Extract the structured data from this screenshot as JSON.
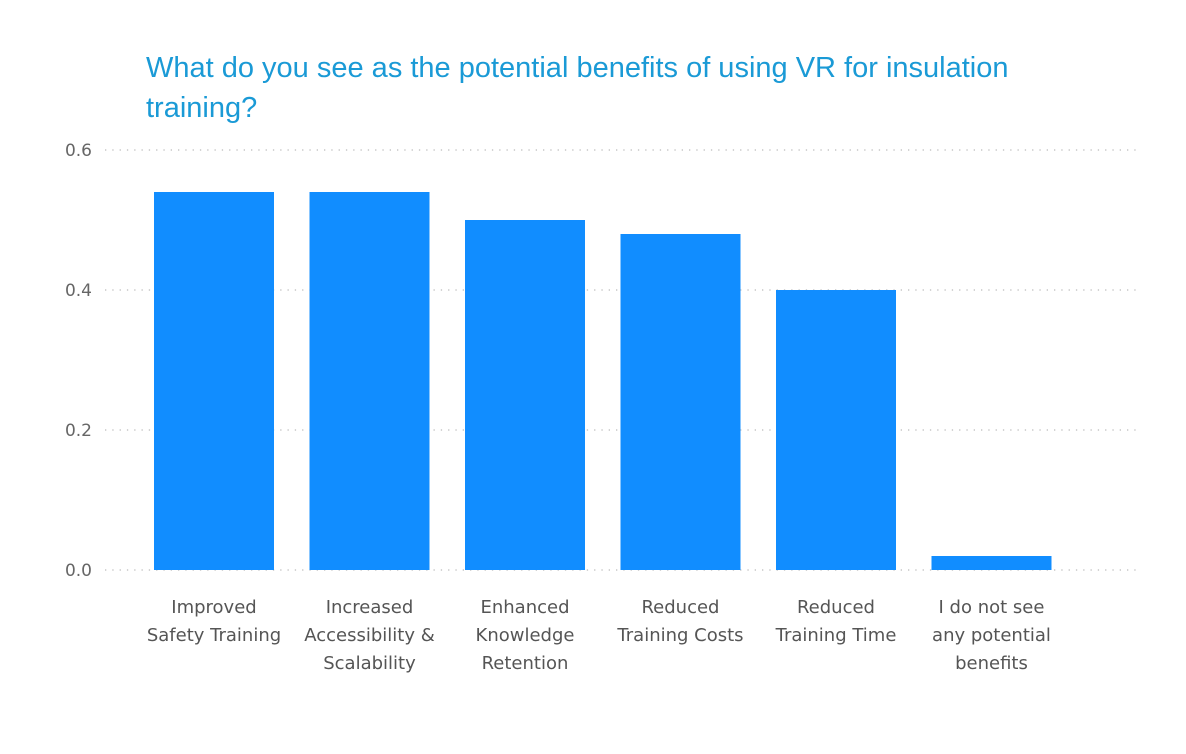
{
  "chart_data": {
    "type": "bar",
    "title": "What do you see as the potential benefits of using VR for insulation training?",
    "categories": [
      [
        "Improved",
        "Safety Training"
      ],
      [
        "Increased",
        "Accessibility &",
        "Scalability"
      ],
      [
        "Enhanced",
        "Knowledge",
        "Retention"
      ],
      [
        "Reduced",
        "Training Costs"
      ],
      [
        "Reduced",
        "Training Time"
      ],
      [
        "I do not see",
        "any potential",
        "benefits"
      ]
    ],
    "values": [
      0.54,
      0.54,
      0.5,
      0.48,
      0.4,
      0.02
    ],
    "xlabel": "",
    "ylabel": "",
    "ylim": [
      0,
      0.6
    ],
    "yticks": [
      "0.0",
      "0.2",
      "0.4",
      "0.6"
    ],
    "grid": "horizontal dotted",
    "bar_color": "#118dff",
    "title_color": "#1a9ad6"
  }
}
